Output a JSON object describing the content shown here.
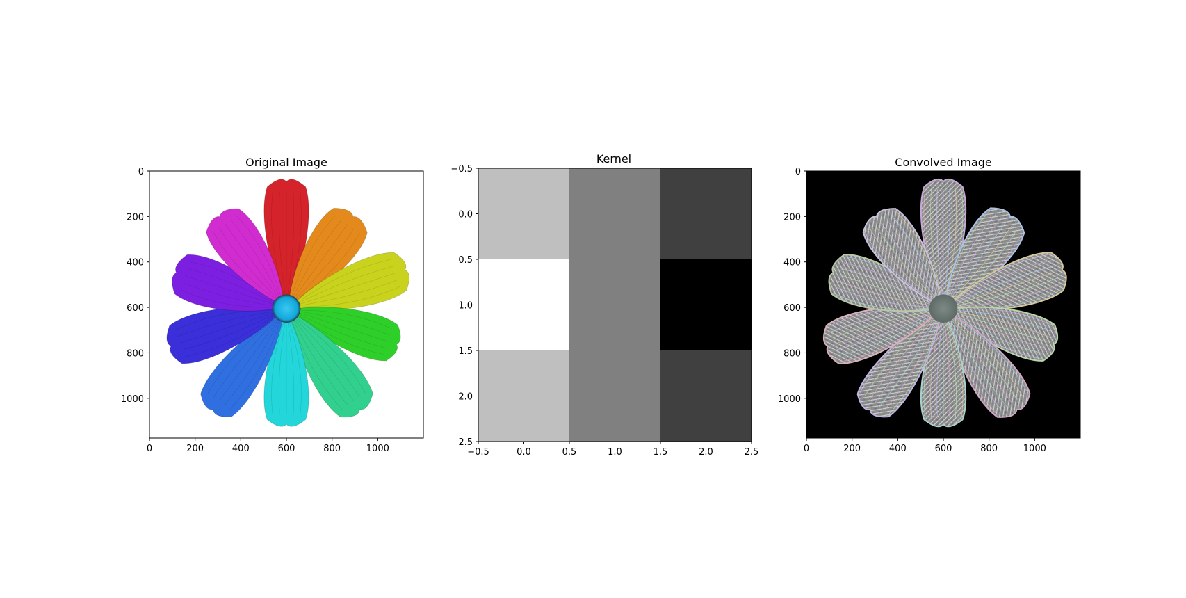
{
  "chart_data": [
    {
      "type": "heatmap",
      "title": "Original Image",
      "xticks": [
        "0",
        "200",
        "400",
        "600",
        "800",
        "1000"
      ],
      "yticks": [
        "0",
        "200",
        "400",
        "600",
        "800",
        "1000"
      ],
      "x_range": [
        0,
        1200
      ],
      "y_range": [
        1175,
        0
      ],
      "content": "rainbow flower on white background",
      "petal_colors": [
        "#d4232a",
        "#e48a1c",
        "#c9d21c",
        "#2fcf2a",
        "#31d08e",
        "#22d6d9",
        "#2f6fe0",
        "#3a2fd8",
        "#7d1fe0",
        "#d02ccf"
      ],
      "background": "#ffffff",
      "center_color": "#1fb6e8"
    },
    {
      "type": "heatmap",
      "title": "Kernel",
      "xticks": [
        "−0.5",
        "0.0",
        "0.5",
        "1.0",
        "1.5",
        "2.0",
        "2.5"
      ],
      "yticks": [
        "−0.5",
        "0.0",
        "0.5",
        "1.0",
        "1.5",
        "2.0",
        "2.5"
      ],
      "x_range": [
        -0.5,
        2.5
      ],
      "y_range": [
        2.5,
        -0.5
      ],
      "colormap": "gray",
      "values": [
        [
          1,
          0,
          -1
        ],
        [
          2,
          0,
          -2
        ],
        [
          1,
          0,
          -1
        ]
      ]
    },
    {
      "type": "heatmap",
      "title": "Convolved Image",
      "xticks": [
        "0",
        "200",
        "400",
        "600",
        "800",
        "1000"
      ],
      "yticks": [
        "0",
        "200",
        "400",
        "600",
        "800",
        "1000"
      ],
      "x_range": [
        0,
        1200
      ],
      "y_range": [
        1175,
        0
      ],
      "content": "edge-detected flower on black background",
      "background": "#000000"
    }
  ]
}
